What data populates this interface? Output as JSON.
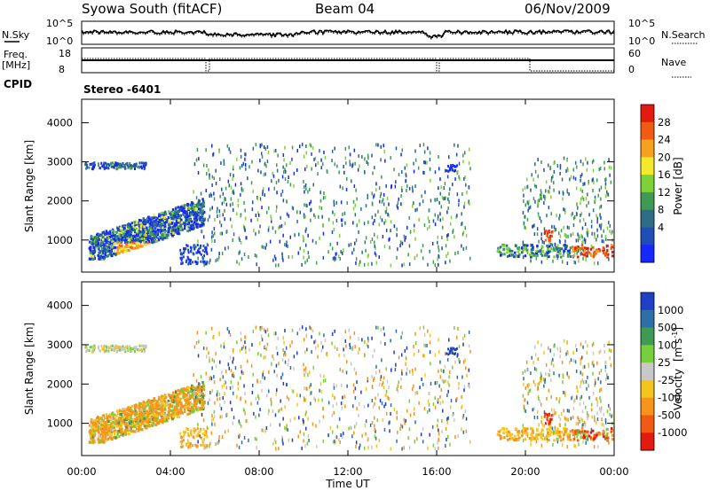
{
  "header": {
    "site": "Syowa South (fitACF)",
    "beam": "Beam 04",
    "date": "06/Nov/2009"
  },
  "left_labels": {
    "nsky": "N.Sky",
    "nsky_top": "10^5",
    "nsky_bottom": "10^0",
    "freq": "Freq.",
    "freq_unit": "[MHz]",
    "freq_top": "18",
    "freq_bottom": "8",
    "cpid": "CPID"
  },
  "right_labels": {
    "nsearch": "N.Search",
    "nsearch_top": "10^5",
    "nsearch_bottom": "10^0",
    "nave": "Nave",
    "nave_top": "60",
    "nave_bottom": "0"
  },
  "cpid_text": "Stereo  -6401",
  "chart_data": [
    {
      "type": "heatmap",
      "name": "power",
      "ylabel": "Slant Range [km]",
      "ylim": [
        180,
        4600
      ],
      "yticks": [
        1000,
        2000,
        3000,
        4000
      ],
      "xlim": [
        0,
        24
      ],
      "colorbar": {
        "label": "Power [dB]",
        "ticks": [
          "4",
          "8",
          "12",
          "16",
          "20",
          "24",
          "28"
        ],
        "colors": [
          "#1428ff",
          "#1f4fb4",
          "#2e6e85",
          "#3f9a54",
          "#7dd23a",
          "#f3ea2c",
          "#f7a21d",
          "#f25a14",
          "#e31a10"
        ]
      }
    },
    {
      "type": "heatmap",
      "name": "velocity",
      "ylabel": "Slant Range [km]",
      "ylim": [
        180,
        4600
      ],
      "yticks": [
        1000,
        2000,
        3000,
        4000
      ],
      "xlim": [
        0,
        24
      ],
      "colorbar": {
        "label": "Velocity",
        "unit": "[m s",
        "unit_sup": "-1",
        "unit_close": "]",
        "ticks": [
          "1000",
          "500",
          "100",
          "25",
          "-25",
          "-100",
          "-500",
          "-1000"
        ],
        "colors": [
          "#1f3fc4",
          "#2f6fa8",
          "#3f9a54",
          "#77cf3c",
          "#c8c8c8",
          "#f4c51c",
          "#f7941c",
          "#f25a14",
          "#e31a10"
        ]
      }
    }
  ],
  "xaxis": {
    "ticks": [
      "00:00",
      "04:00",
      "08:00",
      "12:00",
      "16:00",
      "20:00",
      "00:00"
    ],
    "label": "Time UT"
  }
}
